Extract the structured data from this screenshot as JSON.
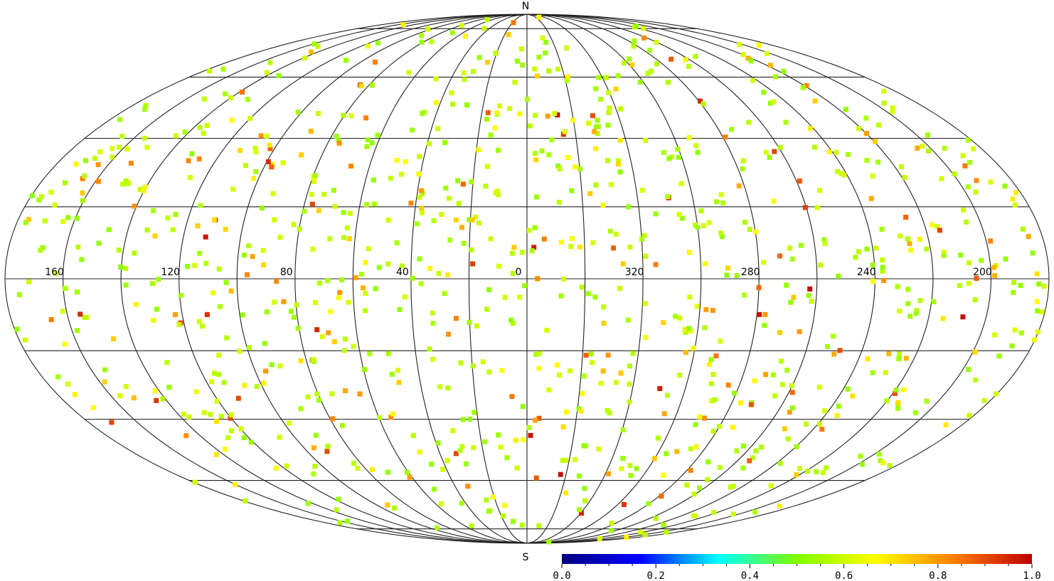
{
  "map": {
    "projection": "mollweide",
    "north_label": "N",
    "south_label": "S",
    "longitude_labels": [
      "160",
      "120",
      "80",
      "40",
      "0",
      "320",
      "280",
      "240",
      "200"
    ],
    "graticule_spacing_deg": 20,
    "seed": 20240517,
    "marker_count": 1000,
    "marker_value_mix": [
      {
        "range": [
          0.52,
          0.62
        ],
        "share": 0.7
      },
      {
        "range": [
          0.64,
          0.74
        ],
        "share": 0.16
      },
      {
        "range": [
          0.75,
          0.85
        ],
        "share": 0.09
      },
      {
        "range": [
          0.86,
          0.95
        ],
        "share": 0.04
      },
      {
        "range": [
          0.96,
          1.0
        ],
        "share": 0.01
      }
    ]
  },
  "colorbar": {
    "min": 0.0,
    "max": 1.0,
    "tick_labels": [
      "0.0",
      "0.2",
      "0.4",
      "0.6",
      "0.8",
      "1.0"
    ],
    "colors": [
      "#00007f",
      "#0000ff",
      "#00ffff",
      "#7fff00",
      "#ffff00",
      "#ff7f00",
      "#bf0000"
    ]
  }
}
